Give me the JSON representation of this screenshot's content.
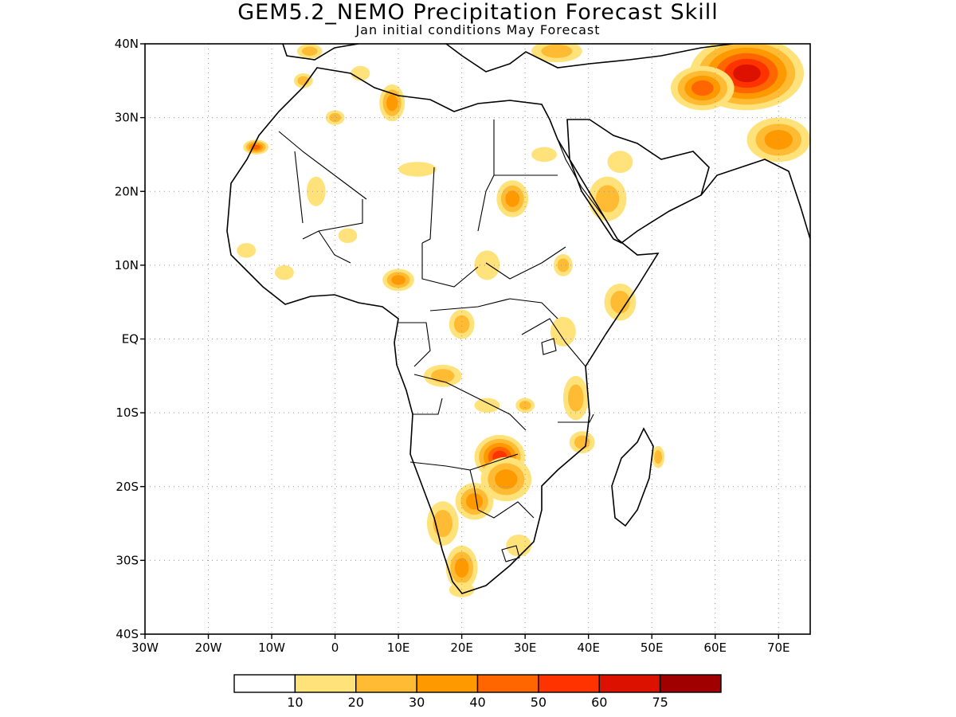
{
  "title": "GEM5.2_NEMO Precipitation Forecast Skill",
  "subtitle": "Jan initial conditions   May Forecast",
  "chart_data": {
    "type": "heatmap",
    "map_extent": {
      "lon": [
        -30,
        75
      ],
      "lat": [
        -40,
        40
      ]
    },
    "x_ticks": [
      {
        "lon": -30,
        "label": "30W"
      },
      {
        "lon": -20,
        "label": "20W"
      },
      {
        "lon": -10,
        "label": "10W"
      },
      {
        "lon": 0,
        "label": "0"
      },
      {
        "lon": 10,
        "label": "10E"
      },
      {
        "lon": 20,
        "label": "20E"
      },
      {
        "lon": 30,
        "label": "30E"
      },
      {
        "lon": 40,
        "label": "40E"
      },
      {
        "lon": 50,
        "label": "50E"
      },
      {
        "lon": 60,
        "label": "60E"
      },
      {
        "lon": 70,
        "label": "70E"
      }
    ],
    "y_ticks": [
      {
        "lat": 40,
        "label": "40N"
      },
      {
        "lat": 30,
        "label": "30N"
      },
      {
        "lat": 20,
        "label": "20N"
      },
      {
        "lat": 10,
        "label": "10N"
      },
      {
        "lat": 0,
        "label": "EQ"
      },
      {
        "lat": -10,
        "label": "10S"
      },
      {
        "lat": -20,
        "label": "20S"
      },
      {
        "lat": -30,
        "label": "30S"
      },
      {
        "lat": -40,
        "label": "40S"
      }
    ],
    "grid": true,
    "legend": {
      "placement": "bottom",
      "colors": [
        "#ffffff",
        "#ffe27a",
        "#ffbb33",
        "#ff9900",
        "#ff6600",
        "#ff3300",
        "#dd1100",
        "#a00000"
      ],
      "labels": [
        "10",
        "20",
        "30",
        "40",
        "50",
        "60",
        "75"
      ]
    },
    "skill_regions": [
      {
        "lon": 65,
        "lat": 36,
        "rlon": 9,
        "rlat": 5,
        "level": 6
      },
      {
        "lon": 58,
        "lat": 34,
        "rlon": 5,
        "rlat": 3,
        "level": 4
      },
      {
        "lon": 70,
        "lat": 27,
        "rlon": 5,
        "rlat": 3,
        "level": 3
      },
      {
        "lon": 26,
        "lat": -16,
        "rlon": 4,
        "rlat": 3,
        "level": 5
      },
      {
        "lon": 27,
        "lat": -19,
        "rlon": 4,
        "rlat": 3,
        "level": 3
      },
      {
        "lon": 22,
        "lat": -22,
        "rlon": 3,
        "rlat": 2.5,
        "level": 3
      },
      {
        "lon": 17,
        "lat": -25,
        "rlon": 2.5,
        "rlat": 3,
        "level": 2
      },
      {
        "lon": 20,
        "lat": -31,
        "rlon": 2.5,
        "rlat": 3,
        "level": 3
      },
      {
        "lon": 28,
        "lat": 19,
        "rlon": 2.5,
        "rlat": 2.5,
        "level": 3
      },
      {
        "lon": 43,
        "lat": 19,
        "rlon": 3,
        "rlat": 3,
        "level": 2
      },
      {
        "lon": 9,
        "lat": 32,
        "rlon": 2,
        "rlat": 2.5,
        "level": 3
      },
      {
        "lon": 10,
        "lat": 8,
        "rlon": 2.5,
        "rlat": 1.5,
        "level": 3
      },
      {
        "lon": -12.5,
        "lat": 26,
        "rlon": 2,
        "rlat": 1,
        "level": 4
      },
      {
        "lon": 45,
        "lat": 5,
        "rlon": 2.5,
        "rlat": 2.5,
        "level": 2
      },
      {
        "lon": 36,
        "lat": 10,
        "rlon": 1.5,
        "rlat": 1.5,
        "level": 2
      },
      {
        "lon": 17,
        "lat": -5,
        "rlon": 3,
        "rlat": 1.5,
        "level": 2
      },
      {
        "lon": 35,
        "lat": 39,
        "rlon": 4,
        "rlat": 1.5,
        "level": 2
      },
      {
        "lon": -4,
        "lat": 39,
        "rlon": 2,
        "rlat": 1,
        "level": 2
      },
      {
        "lon": 0,
        "lat": 30,
        "rlon": 1.5,
        "rlat": 1,
        "level": 2
      },
      {
        "lon": 38,
        "lat": -8,
        "rlon": 2,
        "rlat": 3,
        "level": 2
      },
      {
        "lon": 39,
        "lat": -14,
        "rlon": 2,
        "rlat": 1.5,
        "level": 2
      },
      {
        "lon": 51,
        "lat": -16,
        "rlon": 1,
        "rlat": 1.5,
        "level": 2
      },
      {
        "lon": -5,
        "lat": 35,
        "rlon": 1.5,
        "rlat": 1,
        "level": 2
      },
      {
        "lon": 13,
        "lat": 23,
        "rlon": 3,
        "rlat": 1,
        "level": 1
      },
      {
        "lon": -3,
        "lat": 20,
        "rlon": 1.5,
        "rlat": 2,
        "level": 1
      },
      {
        "lon": 2,
        "lat": 14,
        "rlon": 1.5,
        "rlat": 1,
        "level": 1
      },
      {
        "lon": 24,
        "lat": 10,
        "rlon": 2,
        "rlat": 2,
        "level": 1
      },
      {
        "lon": 20,
        "lat": 2,
        "rlon": 2,
        "rlat": 2,
        "level": 2
      },
      {
        "lon": -8,
        "lat": 9,
        "rlon": 1.5,
        "rlat": 1,
        "level": 1
      },
      {
        "lon": -14,
        "lat": 12,
        "rlon": 1.5,
        "rlat": 1,
        "level": 1
      },
      {
        "lon": 36,
        "lat": 1,
        "rlon": 2,
        "rlat": 2,
        "level": 1
      },
      {
        "lon": 24,
        "lat": -9,
        "rlon": 2,
        "rlat": 1,
        "level": 1
      },
      {
        "lon": 30,
        "lat": -9,
        "rlon": 1.5,
        "rlat": 1,
        "level": 2
      },
      {
        "lon": 29,
        "lat": -28,
        "rlon": 2,
        "rlat": 1.5,
        "level": 1
      },
      {
        "lon": 20,
        "lat": -34,
        "rlon": 2,
        "rlat": 1,
        "level": 1
      },
      {
        "lon": 45,
        "lat": 24,
        "rlon": 2,
        "rlat": 1.5,
        "level": 1
      },
      {
        "lon": 33,
        "lat": 25,
        "rlon": 2,
        "rlat": 1,
        "level": 1
      },
      {
        "lon": 4,
        "lat": 36,
        "rlon": 1.5,
        "rlat": 1,
        "level": 1
      }
    ]
  }
}
